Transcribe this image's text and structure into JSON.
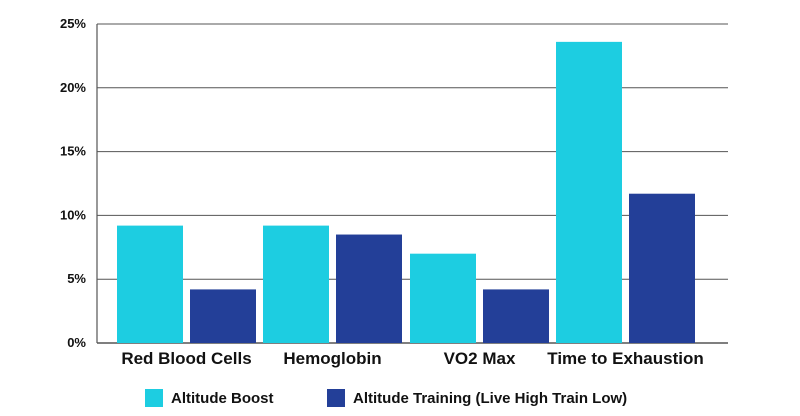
{
  "colors": {
    "series_1": "#1dcde1",
    "series_2": "#233f98",
    "grid": "#555555"
  },
  "chart_data": {
    "type": "bar",
    "categories": [
      "Red Blood Cells",
      "Hemoglobin",
      "VO2 Max",
      "Time to Exhaustion"
    ],
    "series": [
      {
        "name": "Altitude Boost",
        "values": [
          9.2,
          9.2,
          7.0,
          23.6
        ]
      },
      {
        "name": "Altitude Training (Live High Train Low)",
        "values": [
          4.2,
          8.5,
          4.2,
          11.7
        ]
      }
    ],
    "ylim": [
      0,
      25
    ],
    "yticks": [
      0,
      5,
      10,
      15,
      20,
      25
    ],
    "ytick_labels": [
      "0%",
      "5%",
      "10%",
      "15%",
      "20%",
      "25%"
    ],
    "grid": true,
    "legend_position": "bottom"
  }
}
